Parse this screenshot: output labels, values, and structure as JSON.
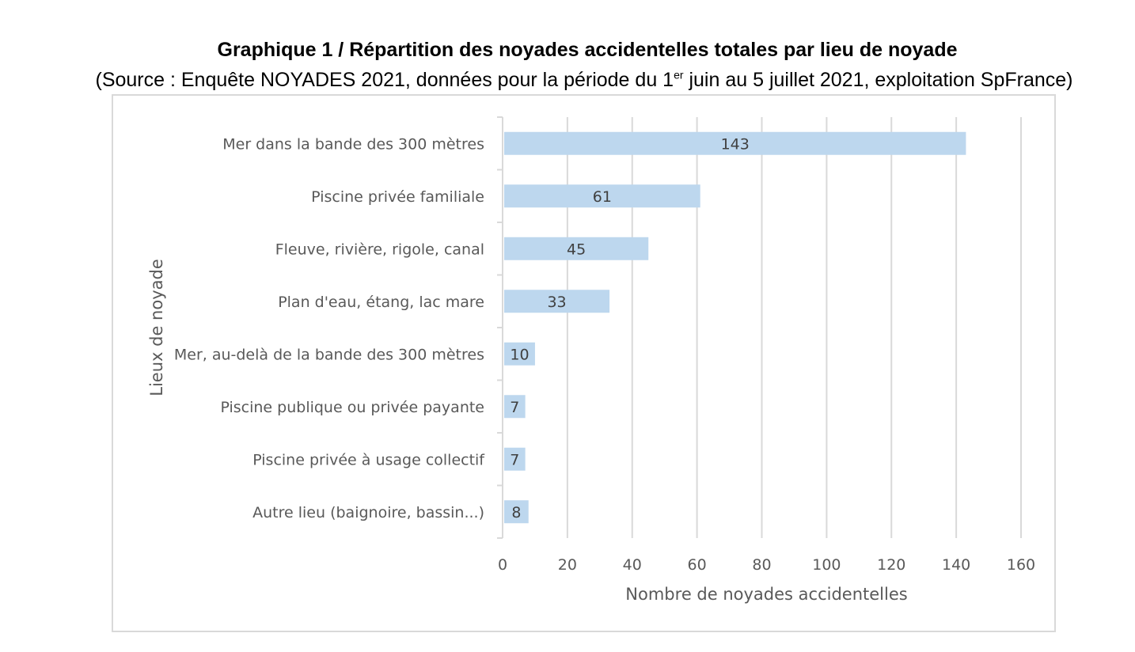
{
  "title": "Graphique 1 / Répartition des noyades accidentelles totales par lieu de noyade",
  "subtitle_before": "(Source : Enquête NOYADES 2021, données pour la période du 1",
  "subtitle_sup": "er",
  "subtitle_after": " juin au 5 juillet 2021, exploitation SpFrance)",
  "colors": {
    "bar": "#bdd7ee",
    "grid": "#d9d9d9",
    "text": "#595959",
    "label": "#404040"
  },
  "chart_data": {
    "type": "bar",
    "orientation": "horizontal",
    "categories": [
      "Mer dans la bande des 300 mètres",
      "Piscine privée familiale",
      "Fleuve, rivière, rigole, canal",
      "Plan d'eau, étang, lac mare",
      "Mer, au-delà de la bande des 300 mètres",
      "Piscine publique ou privée payante",
      "Piscine privée à usage collectif",
      "Autre lieu (baignoire, bassin...)"
    ],
    "values": [
      143,
      61,
      45,
      33,
      10,
      7,
      7,
      8
    ],
    "xlabel": "Nombre de noyades accidentelles",
    "ylabel": "Lieux de noyade",
    "xlim": [
      0,
      160
    ],
    "xticks": [
      "0",
      "20",
      "40",
      "60",
      "80",
      "100",
      "120",
      "140",
      "160"
    ],
    "grid": "vertical",
    "data_labels": true
  }
}
